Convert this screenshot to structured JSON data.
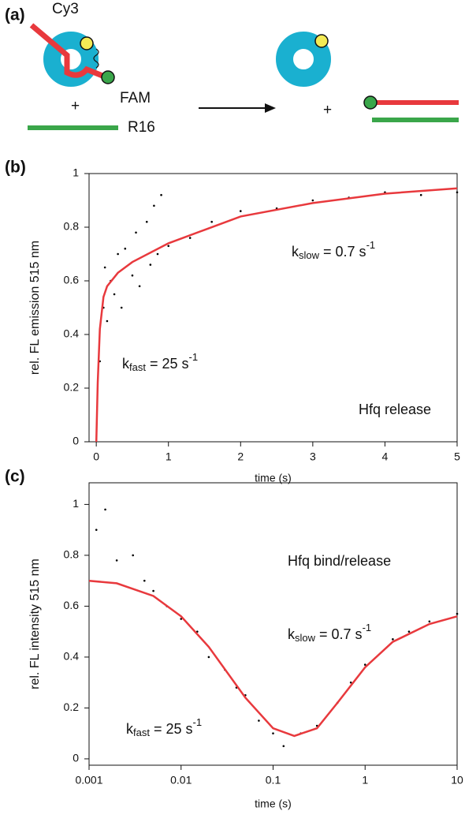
{
  "diagram": {
    "panel_label": "(a)",
    "texts": [
      "Cy3",
      "FAM",
      "+",
      "R16",
      "+"
    ]
  },
  "chart_data": [
    {
      "type": "scatter",
      "panel_label": "(b)",
      "x_label": "time (s)",
      "y_label": "rel. FL emission 515 nm",
      "xlim": [
        -0.1,
        5
      ],
      "xticks": [
        0,
        1,
        2,
        3,
        4,
        5
      ],
      "ylim": [
        0,
        1
      ],
      "yticks": [
        0,
        0.2,
        0.4,
        0.6,
        0.8,
        1
      ],
      "xlog": false,
      "annotations": [
        {
          "base": "k",
          "sub": "slow",
          "text": " = 0.7 s",
          "sup": "-1"
        },
        {
          "base": "k",
          "sub": "fast",
          "text": " = 25 s",
          "sup": "-1"
        },
        {
          "text": "Hfq release"
        }
      ],
      "series": [
        {
          "type": "scatter",
          "color": "#000000",
          "x": [
            0.05,
            0.1,
            0.12,
            0.15,
            0.2,
            0.25,
            0.3,
            0.35,
            0.4,
            0.5,
            0.55,
            0.6,
            0.7,
            0.75,
            0.8,
            0.85,
            0.9,
            1,
            1.3,
            1.6,
            2,
            2.5,
            3,
            3.5,
            4,
            4.5,
            5
          ],
          "values": [
            0.3,
            0.5,
            0.65,
            0.45,
            0.6,
            0.55,
            0.7,
            0.5,
            0.72,
            0.62,
            0.78,
            0.58,
            0.82,
            0.66,
            0.88,
            0.7,
            0.92,
            0.73,
            0.76,
            0.82,
            0.86,
            0.87,
            0.9,
            0.91,
            0.93,
            0.92,
            0.93
          ]
        },
        {
          "type": "line",
          "color": "#e8393d",
          "x": [
            0,
            0.02,
            0.05,
            0.1,
            0.15,
            0.3,
            0.5,
            1,
            1.5,
            2,
            3,
            4,
            5
          ],
          "values": [
            0,
            0.22,
            0.42,
            0.54,
            0.58,
            0.63,
            0.67,
            0.74,
            0.79,
            0.84,
            0.89,
            0.925,
            0.945
          ]
        }
      ]
    },
    {
      "type": "scatter",
      "panel_label": "(c)",
      "x_label": "time (s)",
      "y_label": "rel. FL intensity 515 nm",
      "xlim": [
        0.001,
        10
      ],
      "xticks": [
        0.001,
        0.01,
        0.1,
        1,
        10
      ],
      "ylim": [
        -0.025,
        1.085
      ],
      "yticks": [
        0,
        0.2,
        0.4,
        0.6,
        0.8,
        1
      ],
      "xlog": true,
      "annotations": [
        {
          "base": "k",
          "sub": "slow",
          "text": " = 0.7 s",
          "sup": "-1"
        },
        {
          "base": "k",
          "sub": "fast",
          "text": " = 25 s",
          "sup": "-1"
        },
        {
          "text": "Hfq bind/release"
        }
      ],
      "series": [
        {
          "type": "scatter",
          "color": "#000000",
          "x": [
            0.0012,
            0.0015,
            0.002,
            0.003,
            0.004,
            0.005,
            0.007,
            0.01,
            0.015,
            0.02,
            0.03,
            0.04,
            0.05,
            0.07,
            0.1,
            0.13,
            0.2,
            0.3,
            0.5,
            0.7,
            1,
            2,
            3,
            5,
            10
          ],
          "values": [
            0.9,
            0.98,
            0.78,
            0.8,
            0.7,
            0.66,
            0.6,
            0.55,
            0.5,
            0.4,
            0.35,
            0.28,
            0.25,
            0.15,
            0.1,
            0.05,
            0.1,
            0.13,
            0.22,
            0.3,
            0.37,
            0.47,
            0.5,
            0.54,
            0.57
          ]
        },
        {
          "type": "line",
          "color": "#e8393d",
          "x": [
            0.001,
            0.002,
            0.005,
            0.01,
            0.02,
            0.05,
            0.1,
            0.17,
            0.3,
            0.5,
            1,
            2,
            5,
            10
          ],
          "values": [
            0.7,
            0.69,
            0.64,
            0.56,
            0.44,
            0.24,
            0.12,
            0.09,
            0.12,
            0.22,
            0.36,
            0.46,
            0.53,
            0.56
          ]
        }
      ]
    }
  ]
}
